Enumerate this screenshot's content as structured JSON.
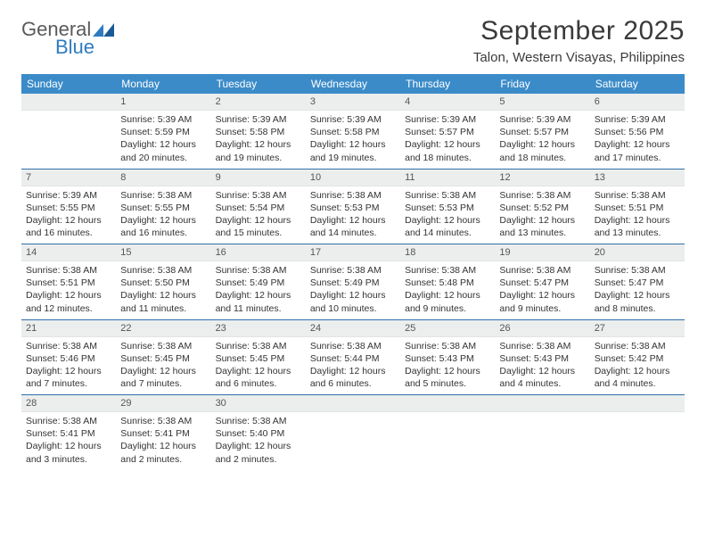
{
  "logo": {
    "text1": "General",
    "text2": "Blue"
  },
  "title": "September 2025",
  "location": "Talon, Western Visayas, Philippines",
  "colors": {
    "header_bg": "#3b8bc9",
    "header_text": "#ffffff",
    "daynum_bg": "#eceeee",
    "week_separator": "#2f6fa8",
    "body_text": "#333333",
    "title_text": "#3a3a3a",
    "logo_gray": "#5a5a5a",
    "logo_blue": "#2f7bbf"
  },
  "weekdays": [
    "Sunday",
    "Monday",
    "Tuesday",
    "Wednesday",
    "Thursday",
    "Friday",
    "Saturday"
  ],
  "first_weekday_index": 1,
  "days": [
    {
      "n": 1,
      "sunrise": "5:39 AM",
      "sunset": "5:59 PM",
      "daylight": "12 hours and 20 minutes."
    },
    {
      "n": 2,
      "sunrise": "5:39 AM",
      "sunset": "5:58 PM",
      "daylight": "12 hours and 19 minutes."
    },
    {
      "n": 3,
      "sunrise": "5:39 AM",
      "sunset": "5:58 PM",
      "daylight": "12 hours and 19 minutes."
    },
    {
      "n": 4,
      "sunrise": "5:39 AM",
      "sunset": "5:57 PM",
      "daylight": "12 hours and 18 minutes."
    },
    {
      "n": 5,
      "sunrise": "5:39 AM",
      "sunset": "5:57 PM",
      "daylight": "12 hours and 18 minutes."
    },
    {
      "n": 6,
      "sunrise": "5:39 AM",
      "sunset": "5:56 PM",
      "daylight": "12 hours and 17 minutes."
    },
    {
      "n": 7,
      "sunrise": "5:39 AM",
      "sunset": "5:55 PM",
      "daylight": "12 hours and 16 minutes."
    },
    {
      "n": 8,
      "sunrise": "5:38 AM",
      "sunset": "5:55 PM",
      "daylight": "12 hours and 16 minutes."
    },
    {
      "n": 9,
      "sunrise": "5:38 AM",
      "sunset": "5:54 PM",
      "daylight": "12 hours and 15 minutes."
    },
    {
      "n": 10,
      "sunrise": "5:38 AM",
      "sunset": "5:53 PM",
      "daylight": "12 hours and 14 minutes."
    },
    {
      "n": 11,
      "sunrise": "5:38 AM",
      "sunset": "5:53 PM",
      "daylight": "12 hours and 14 minutes."
    },
    {
      "n": 12,
      "sunrise": "5:38 AM",
      "sunset": "5:52 PM",
      "daylight": "12 hours and 13 minutes."
    },
    {
      "n": 13,
      "sunrise": "5:38 AM",
      "sunset": "5:51 PM",
      "daylight": "12 hours and 13 minutes."
    },
    {
      "n": 14,
      "sunrise": "5:38 AM",
      "sunset": "5:51 PM",
      "daylight": "12 hours and 12 minutes."
    },
    {
      "n": 15,
      "sunrise": "5:38 AM",
      "sunset": "5:50 PM",
      "daylight": "12 hours and 11 minutes."
    },
    {
      "n": 16,
      "sunrise": "5:38 AM",
      "sunset": "5:49 PM",
      "daylight": "12 hours and 11 minutes."
    },
    {
      "n": 17,
      "sunrise": "5:38 AM",
      "sunset": "5:49 PM",
      "daylight": "12 hours and 10 minutes."
    },
    {
      "n": 18,
      "sunrise": "5:38 AM",
      "sunset": "5:48 PM",
      "daylight": "12 hours and 9 minutes."
    },
    {
      "n": 19,
      "sunrise": "5:38 AM",
      "sunset": "5:47 PM",
      "daylight": "12 hours and 9 minutes."
    },
    {
      "n": 20,
      "sunrise": "5:38 AM",
      "sunset": "5:47 PM",
      "daylight": "12 hours and 8 minutes."
    },
    {
      "n": 21,
      "sunrise": "5:38 AM",
      "sunset": "5:46 PM",
      "daylight": "12 hours and 7 minutes."
    },
    {
      "n": 22,
      "sunrise": "5:38 AM",
      "sunset": "5:45 PM",
      "daylight": "12 hours and 7 minutes."
    },
    {
      "n": 23,
      "sunrise": "5:38 AM",
      "sunset": "5:45 PM",
      "daylight": "12 hours and 6 minutes."
    },
    {
      "n": 24,
      "sunrise": "5:38 AM",
      "sunset": "5:44 PM",
      "daylight": "12 hours and 6 minutes."
    },
    {
      "n": 25,
      "sunrise": "5:38 AM",
      "sunset": "5:43 PM",
      "daylight": "12 hours and 5 minutes."
    },
    {
      "n": 26,
      "sunrise": "5:38 AM",
      "sunset": "5:43 PM",
      "daylight": "12 hours and 4 minutes."
    },
    {
      "n": 27,
      "sunrise": "5:38 AM",
      "sunset": "5:42 PM",
      "daylight": "12 hours and 4 minutes."
    },
    {
      "n": 28,
      "sunrise": "5:38 AM",
      "sunset": "5:41 PM",
      "daylight": "12 hours and 3 minutes."
    },
    {
      "n": 29,
      "sunrise": "5:38 AM",
      "sunset": "5:41 PM",
      "daylight": "12 hours and 2 minutes."
    },
    {
      "n": 30,
      "sunrise": "5:38 AM",
      "sunset": "5:40 PM",
      "daylight": "12 hours and 2 minutes."
    }
  ],
  "labels": {
    "sunrise": "Sunrise:",
    "sunset": "Sunset:",
    "daylight": "Daylight:"
  }
}
